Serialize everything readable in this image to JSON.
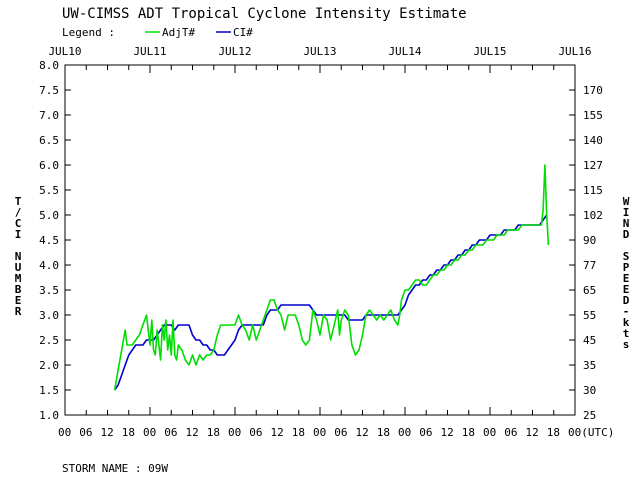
{
  "chart_data": {
    "type": "line",
    "title": "UW-CIMSS ADT Tropical Cyclone Intensity Estimate",
    "legend_label": "Legend :",
    "legend_position": "top-left",
    "grid": false,
    "series": [
      {
        "name": "AdjT#",
        "color": "#00dd00",
        "points": [
          [
            14.0,
            1.5
          ],
          [
            14.5,
            1.7
          ],
          [
            15.0,
            1.9
          ],
          [
            16.0,
            2.3
          ],
          [
            16.5,
            2.5
          ],
          [
            17.0,
            2.7
          ],
          [
            17.5,
            2.4
          ],
          [
            18.0,
            2.4
          ],
          [
            19.0,
            2.4
          ],
          [
            20.0,
            2.5
          ],
          [
            21.0,
            2.6
          ],
          [
            22.0,
            2.8
          ],
          [
            22.5,
            2.9
          ],
          [
            23.0,
            3.0
          ],
          [
            23.5,
            2.7
          ],
          [
            24.0,
            2.4
          ],
          [
            24.5,
            2.9
          ],
          [
            25.0,
            2.3
          ],
          [
            25.5,
            2.2
          ],
          [
            26.0,
            2.7
          ],
          [
            26.5,
            2.4
          ],
          [
            27.0,
            2.1
          ],
          [
            27.5,
            2.8
          ],
          [
            28.0,
            2.5
          ],
          [
            28.5,
            2.9
          ],
          [
            29.0,
            2.3
          ],
          [
            29.5,
            2.6
          ],
          [
            30.0,
            2.2
          ],
          [
            30.5,
            2.9
          ],
          [
            31.0,
            2.2
          ],
          [
            31.5,
            2.1
          ],
          [
            32.0,
            2.4
          ],
          [
            33.0,
            2.3
          ],
          [
            34.0,
            2.1
          ],
          [
            35.0,
            2.0
          ],
          [
            36.0,
            2.2
          ],
          [
            37.0,
            2.0
          ],
          [
            38.0,
            2.2
          ],
          [
            39.0,
            2.1
          ],
          [
            40.0,
            2.2
          ],
          [
            41.0,
            2.2
          ],
          [
            42.0,
            2.3
          ],
          [
            43.0,
            2.6
          ],
          [
            44.0,
            2.8
          ],
          [
            45.0,
            2.8
          ],
          [
            46.0,
            2.8
          ],
          [
            47.0,
            2.8
          ],
          [
            48.0,
            2.8
          ],
          [
            49.0,
            3.0
          ],
          [
            50.0,
            2.8
          ],
          [
            51.0,
            2.7
          ],
          [
            52.0,
            2.5
          ],
          [
            53.0,
            2.8
          ],
          [
            54.0,
            2.5
          ],
          [
            55.0,
            2.7
          ],
          [
            56.0,
            2.9
          ],
          [
            57.0,
            3.1
          ],
          [
            58.0,
            3.3
          ],
          [
            59.0,
            3.3
          ],
          [
            60.0,
            3.1
          ],
          [
            61.0,
            3.0
          ],
          [
            62.0,
            2.7
          ],
          [
            63.0,
            3.0
          ],
          [
            64.0,
            3.0
          ],
          [
            65.0,
            3.0
          ],
          [
            66.0,
            2.8
          ],
          [
            67.0,
            2.5
          ],
          [
            68.0,
            2.4
          ],
          [
            69.0,
            2.5
          ],
          [
            70.0,
            3.1
          ],
          [
            71.0,
            2.9
          ],
          [
            72.0,
            2.6
          ],
          [
            73.0,
            3.0
          ],
          [
            74.0,
            2.9
          ],
          [
            75.0,
            2.5
          ],
          [
            76.0,
            2.8
          ],
          [
            77.0,
            3.1
          ],
          [
            77.5,
            2.6
          ],
          [
            78.0,
            2.9
          ],
          [
            79.0,
            3.1
          ],
          [
            80.0,
            3.0
          ],
          [
            80.5,
            2.7
          ],
          [
            81.0,
            2.4
          ],
          [
            82.0,
            2.2
          ],
          [
            83.0,
            2.3
          ],
          [
            84.0,
            2.6
          ],
          [
            85.0,
            3.0
          ],
          [
            86.0,
            3.1
          ],
          [
            87.0,
            3.0
          ],
          [
            88.0,
            2.9
          ],
          [
            89.0,
            3.0
          ],
          [
            90.0,
            2.9
          ],
          [
            91.0,
            3.0
          ],
          [
            92.0,
            3.1
          ],
          [
            93.0,
            2.9
          ],
          [
            94.0,
            2.8
          ],
          [
            94.5,
            3.0
          ],
          [
            95.0,
            3.3
          ],
          [
            96.0,
            3.5
          ],
          [
            97.0,
            3.5
          ],
          [
            98.0,
            3.6
          ],
          [
            99.0,
            3.7
          ],
          [
            100.0,
            3.7
          ],
          [
            101.0,
            3.6
          ],
          [
            102.0,
            3.6
          ],
          [
            103.0,
            3.7
          ],
          [
            104.0,
            3.8
          ],
          [
            105.0,
            3.8
          ],
          [
            106.0,
            3.9
          ],
          [
            107.0,
            3.9
          ],
          [
            108.0,
            4.0
          ],
          [
            109.0,
            4.0
          ],
          [
            110.0,
            4.1
          ],
          [
            111.0,
            4.1
          ],
          [
            112.0,
            4.2
          ],
          [
            113.0,
            4.2
          ],
          [
            114.0,
            4.3
          ],
          [
            115.0,
            4.3
          ],
          [
            116.0,
            4.4
          ],
          [
            117.0,
            4.4
          ],
          [
            118.0,
            4.4
          ],
          [
            119.0,
            4.5
          ],
          [
            120.0,
            4.5
          ],
          [
            121.0,
            4.5
          ],
          [
            122.0,
            4.6
          ],
          [
            123.0,
            4.6
          ],
          [
            124.0,
            4.6
          ],
          [
            125.0,
            4.7
          ],
          [
            126.0,
            4.7
          ],
          [
            127.0,
            4.7
          ],
          [
            128.0,
            4.7
          ],
          [
            129.0,
            4.8
          ],
          [
            130.0,
            4.8
          ],
          [
            131.0,
            4.8
          ],
          [
            132.0,
            4.8
          ],
          [
            133.0,
            4.8
          ],
          [
            134.0,
            4.8
          ],
          [
            134.5,
            4.8
          ],
          [
            135.0,
            5.1
          ],
          [
            135.5,
            6.0
          ],
          [
            136.0,
            5.0
          ],
          [
            136.5,
            4.4
          ]
        ]
      },
      {
        "name": "CI#",
        "color": "#0000cc",
        "points": [
          [
            14.0,
            1.5
          ],
          [
            15.0,
            1.6
          ],
          [
            16.0,
            1.8
          ],
          [
            17.0,
            2.0
          ],
          [
            18.0,
            2.2
          ],
          [
            19.0,
            2.3
          ],
          [
            20.0,
            2.4
          ],
          [
            22.0,
            2.4
          ],
          [
            23.0,
            2.5
          ],
          [
            25.0,
            2.5
          ],
          [
            26.0,
            2.6
          ],
          [
            27.0,
            2.7
          ],
          [
            28.0,
            2.8
          ],
          [
            30.0,
            2.8
          ],
          [
            31.0,
            2.7
          ],
          [
            32.0,
            2.8
          ],
          [
            35.0,
            2.8
          ],
          [
            36.0,
            2.6
          ],
          [
            37.0,
            2.5
          ],
          [
            38.0,
            2.5
          ],
          [
            39.0,
            2.4
          ],
          [
            40.0,
            2.4
          ],
          [
            41.0,
            2.3
          ],
          [
            42.0,
            2.3
          ],
          [
            43.0,
            2.2
          ],
          [
            45.0,
            2.2
          ],
          [
            46.0,
            2.3
          ],
          [
            47.0,
            2.4
          ],
          [
            48.0,
            2.5
          ],
          [
            49.0,
            2.7
          ],
          [
            50.0,
            2.8
          ],
          [
            56.0,
            2.8
          ],
          [
            57.0,
            3.0
          ],
          [
            58.0,
            3.1
          ],
          [
            60.0,
            3.1
          ],
          [
            61.0,
            3.2
          ],
          [
            69.0,
            3.2
          ],
          [
            70.0,
            3.1
          ],
          [
            71.0,
            3.0
          ],
          [
            79.0,
            3.0
          ],
          [
            80.0,
            2.9
          ],
          [
            84.0,
            2.9
          ],
          [
            85.0,
            3.0
          ],
          [
            93.0,
            3.0
          ],
          [
            94.0,
            3.0
          ],
          [
            95.0,
            3.1
          ],
          [
            96.0,
            3.2
          ],
          [
            97.0,
            3.4
          ],
          [
            98.0,
            3.5
          ],
          [
            99.0,
            3.6
          ],
          [
            100.0,
            3.6
          ],
          [
            101.0,
            3.7
          ],
          [
            102.0,
            3.7
          ],
          [
            103.0,
            3.8
          ],
          [
            104.0,
            3.8
          ],
          [
            105.0,
            3.9
          ],
          [
            106.0,
            3.9
          ],
          [
            107.0,
            4.0
          ],
          [
            108.0,
            4.0
          ],
          [
            109.0,
            4.1
          ],
          [
            110.0,
            4.1
          ],
          [
            111.0,
            4.2
          ],
          [
            112.0,
            4.2
          ],
          [
            113.0,
            4.3
          ],
          [
            114.0,
            4.3
          ],
          [
            115.0,
            4.4
          ],
          [
            116.0,
            4.4
          ],
          [
            117.0,
            4.5
          ],
          [
            118.0,
            4.5
          ],
          [
            119.0,
            4.5
          ],
          [
            120.0,
            4.6
          ],
          [
            121.0,
            4.6
          ],
          [
            122.0,
            4.6
          ],
          [
            123.0,
            4.6
          ],
          [
            124.0,
            4.7
          ],
          [
            125.0,
            4.7
          ],
          [
            126.0,
            4.7
          ],
          [
            127.0,
            4.7
          ],
          [
            128.0,
            4.8
          ],
          [
            134.0,
            4.8
          ],
          [
            135.0,
            4.9
          ],
          [
            136.0,
            5.0
          ]
        ]
      }
    ],
    "xlim": [
      0,
      144
    ],
    "x_unit_note": "hours since JUL10 00",
    "x_date_labels": [
      "JUL10",
      "JUL11",
      "JUL12",
      "JUL13",
      "JUL14",
      "JUL15",
      "JUL16"
    ],
    "x_hour_labels": [
      "00",
      "06",
      "12",
      "18",
      "00",
      "06",
      "12",
      "18",
      "00",
      "06",
      "12",
      "18",
      "00",
      "06",
      "12",
      "18",
      "00",
      "06",
      "12",
      "18",
      "00",
      "06",
      "12",
      "18",
      "00(UTC)"
    ],
    "ylim": [
      1.0,
      8.0
    ],
    "ylabel": "T/CI NUMBER",
    "y_ticks": [
      "1.0",
      "1.5",
      "2.0",
      "2.5",
      "3.0",
      "3.5",
      "4.0",
      "4.5",
      "5.0",
      "5.5",
      "6.0",
      "6.5",
      "7.0",
      "7.5",
      "8.0"
    ],
    "y2label": "WIND SPEED-kts",
    "y2_ticks": [
      "25",
      "30",
      "35",
      "45",
      "55",
      "65",
      "77",
      "90",
      "102",
      "115",
      "127",
      "140",
      "155",
      "170"
    ]
  },
  "storm_name": "STORM NAME : 09W"
}
